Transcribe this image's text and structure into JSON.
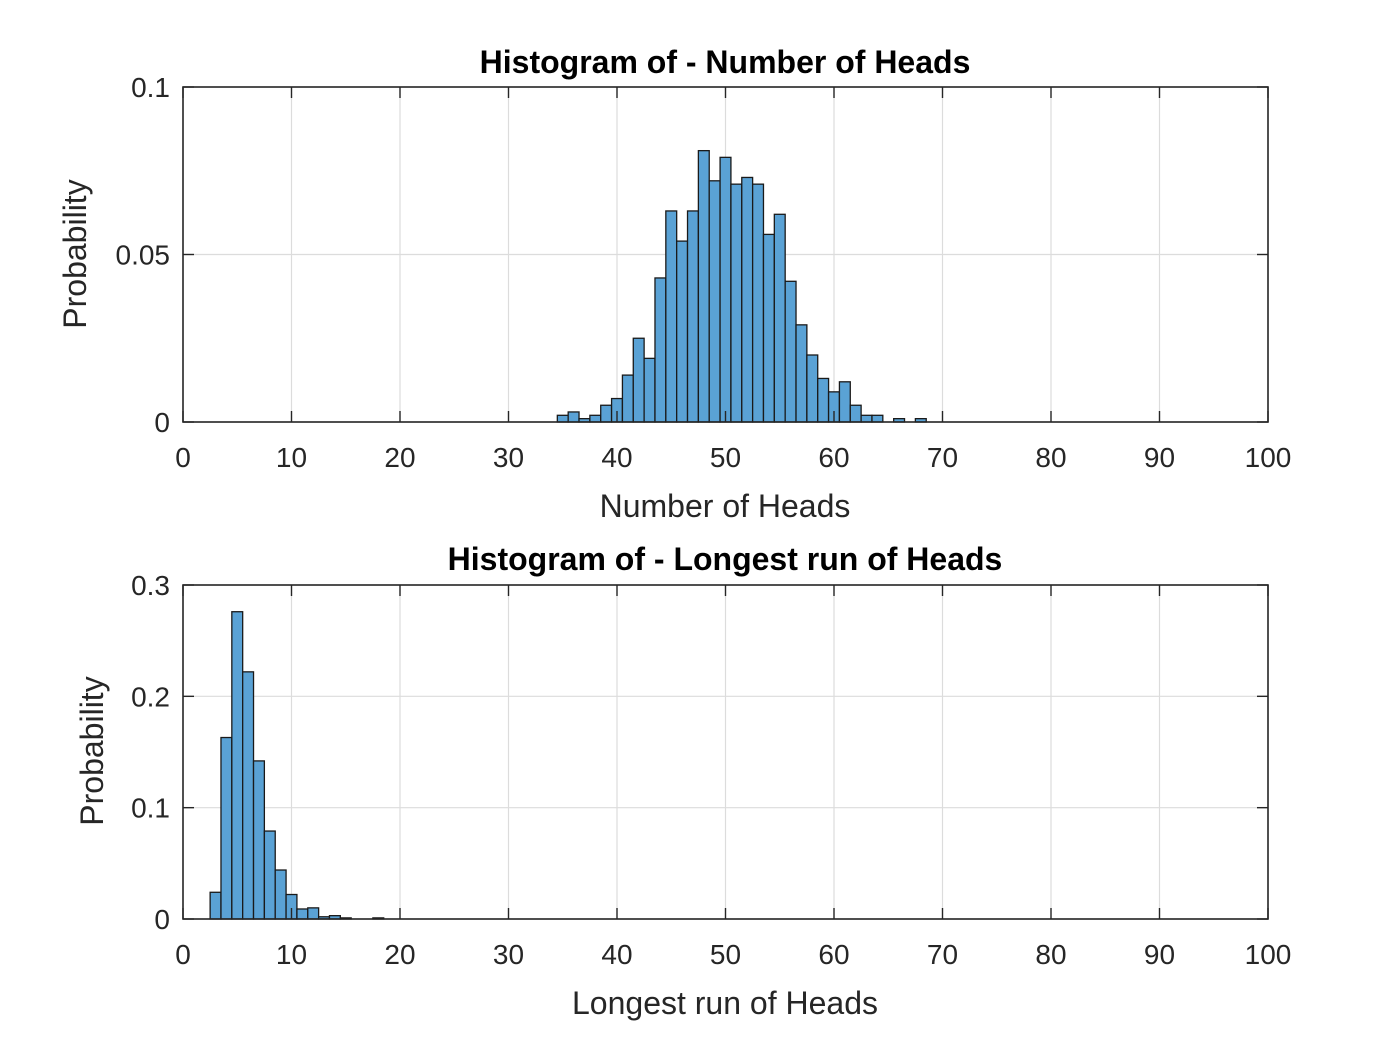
{
  "chart_data": [
    {
      "type": "bar",
      "title": "Histogram of -  Number of Heads",
      "xlabel": "Number of Heads",
      "ylabel": "Probability",
      "xlim": [
        0,
        100
      ],
      "ylim": [
        0,
        0.1
      ],
      "grid": true,
      "bar_color": "#5aa2d5",
      "bar_edge_color": "#1a1a1a",
      "x_ticks": [
        "0",
        "10",
        "20",
        "30",
        "40",
        "50",
        "60",
        "70",
        "80",
        "90",
        "100"
      ],
      "y_ticks": [
        "0",
        "0.05",
        "0.1"
      ],
      "y_tick_values": [
        0,
        0.05,
        0.1
      ],
      "bins": [
        {
          "x0": 34.5,
          "x1": 35.5,
          "y": 0.002
        },
        {
          "x0": 35.5,
          "x1": 36.5,
          "y": 0.003
        },
        {
          "x0": 36.5,
          "x1": 37.5,
          "y": 0.001
        },
        {
          "x0": 37.5,
          "x1": 38.5,
          "y": 0.002
        },
        {
          "x0": 38.5,
          "x1": 39.5,
          "y": 0.005
        },
        {
          "x0": 39.5,
          "x1": 40.5,
          "y": 0.007
        },
        {
          "x0": 40.5,
          "x1": 41.5,
          "y": 0.014
        },
        {
          "x0": 41.5,
          "x1": 42.5,
          "y": 0.025
        },
        {
          "x0": 42.5,
          "x1": 43.5,
          "y": 0.019
        },
        {
          "x0": 43.5,
          "x1": 44.5,
          "y": 0.043
        },
        {
          "x0": 44.5,
          "x1": 45.5,
          "y": 0.063
        },
        {
          "x0": 45.5,
          "x1": 46.5,
          "y": 0.054
        },
        {
          "x0": 46.5,
          "x1": 47.5,
          "y": 0.063
        },
        {
          "x0": 47.5,
          "x1": 48.5,
          "y": 0.081
        },
        {
          "x0": 48.5,
          "x1": 49.5,
          "y": 0.072
        },
        {
          "x0": 49.5,
          "x1": 50.5,
          "y": 0.079
        },
        {
          "x0": 50.5,
          "x1": 51.5,
          "y": 0.071
        },
        {
          "x0": 51.5,
          "x1": 52.5,
          "y": 0.073
        },
        {
          "x0": 52.5,
          "x1": 53.5,
          "y": 0.071
        },
        {
          "x0": 53.5,
          "x1": 54.5,
          "y": 0.056
        },
        {
          "x0": 54.5,
          "x1": 55.5,
          "y": 0.062
        },
        {
          "x0": 55.5,
          "x1": 56.5,
          "y": 0.042
        },
        {
          "x0": 56.5,
          "x1": 57.5,
          "y": 0.029
        },
        {
          "x0": 57.5,
          "x1": 58.5,
          "y": 0.02
        },
        {
          "x0": 58.5,
          "x1": 59.5,
          "y": 0.013
        },
        {
          "x0": 59.5,
          "x1": 60.5,
          "y": 0.009
        },
        {
          "x0": 60.5,
          "x1": 61.5,
          "y": 0.012
        },
        {
          "x0": 61.5,
          "x1": 62.5,
          "y": 0.005
        },
        {
          "x0": 62.5,
          "x1": 63.5,
          "y": 0.002
        },
        {
          "x0": 63.5,
          "x1": 64.5,
          "y": 0.002
        },
        {
          "x0": 65.5,
          "x1": 66.5,
          "y": 0.001
        },
        {
          "x0": 67.5,
          "x1": 68.5,
          "y": 0.001
        }
      ]
    },
    {
      "type": "bar",
      "title": "Histogram of -  Longest run of Heads",
      "xlabel": "Longest run of Heads",
      "ylabel": "Probability",
      "xlim": [
        0,
        100
      ],
      "ylim": [
        0,
        0.3
      ],
      "grid": true,
      "bar_color": "#5aa2d5",
      "bar_edge_color": "#1a1a1a",
      "x_ticks": [
        "0",
        "10",
        "20",
        "30",
        "40",
        "50",
        "60",
        "70",
        "80",
        "90",
        "100"
      ],
      "y_ticks": [
        "0",
        "0.1",
        "0.2",
        "0.3"
      ],
      "y_tick_values": [
        0,
        0.1,
        0.2,
        0.3
      ],
      "bins": [
        {
          "x0": 2.5,
          "x1": 3.5,
          "y": 0.024
        },
        {
          "x0": 3.5,
          "x1": 4.5,
          "y": 0.163
        },
        {
          "x0": 4.5,
          "x1": 5.5,
          "y": 0.276
        },
        {
          "x0": 5.5,
          "x1": 6.5,
          "y": 0.222
        },
        {
          "x0": 6.5,
          "x1": 7.5,
          "y": 0.142
        },
        {
          "x0": 7.5,
          "x1": 8.5,
          "y": 0.079
        },
        {
          "x0": 8.5,
          "x1": 9.5,
          "y": 0.044
        },
        {
          "x0": 9.5,
          "x1": 10.5,
          "y": 0.022
        },
        {
          "x0": 10.5,
          "x1": 11.5,
          "y": 0.009
        },
        {
          "x0": 11.5,
          "x1": 12.5,
          "y": 0.01
        },
        {
          "x0": 12.5,
          "x1": 13.5,
          "y": 0.002
        },
        {
          "x0": 13.5,
          "x1": 14.5,
          "y": 0.003
        },
        {
          "x0": 14.5,
          "x1": 15.5,
          "y": 0.001
        },
        {
          "x0": 17.5,
          "x1": 18.5,
          "y": 0.001
        }
      ]
    }
  ]
}
